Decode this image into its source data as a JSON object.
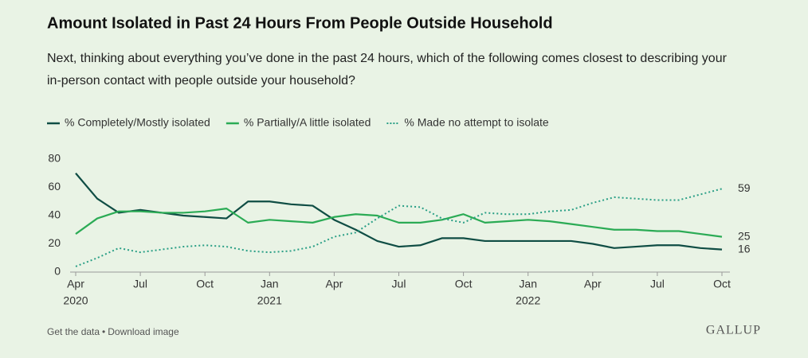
{
  "chart_data": {
    "type": "line",
    "title": "Amount Isolated in Past 24 Hours From People Outside Household",
    "subtitle": "Next, thinking about everything you’ve done in the past 24 hours, which of the following comes closest to describing your in-person contact with people outside your household?",
    "x": [
      "2020-04",
      "2020-05",
      "2020-06",
      "2020-07",
      "2020-08",
      "2020-09",
      "2020-10",
      "2020-11",
      "2020-12",
      "2021-01",
      "2021-02",
      "2021-03",
      "2021-04",
      "2021-05",
      "2021-06",
      "2021-07",
      "2021-08",
      "2021-09",
      "2021-10",
      "2021-11",
      "2021-12",
      "2022-01",
      "2022-02",
      "2022-03",
      "2022-04",
      "2022-05",
      "2022-06",
      "2022-07",
      "2022-08",
      "2022-09",
      "2022-10"
    ],
    "series": [
      {
        "name": "% Completely/Mostly isolated",
        "color": "#0f4d44",
        "style": "solid",
        "values": [
          70,
          52,
          42,
          44,
          42,
          40,
          39,
          38,
          50,
          50,
          48,
          47,
          37,
          30,
          22,
          18,
          19,
          24,
          24,
          22,
          22,
          22,
          22,
          22,
          20,
          17,
          18,
          19,
          19,
          17,
          16
        ]
      },
      {
        "name": "% Partially/A little isolated",
        "color": "#2bab55",
        "style": "solid",
        "values": [
          27,
          38,
          43,
          43,
          42,
          42,
          43,
          45,
          35,
          37,
          36,
          35,
          39,
          41,
          40,
          35,
          35,
          37,
          41,
          35,
          36,
          37,
          36,
          34,
          32,
          30,
          30,
          29,
          29,
          27,
          25
        ]
      },
      {
        "name": "% Made no attempt to isolate",
        "color": "#2a9f86",
        "style": "dotted",
        "values": [
          4,
          10,
          17,
          14,
          16,
          18,
          19,
          18,
          15,
          14,
          15,
          18,
          25,
          28,
          38,
          47,
          46,
          38,
          35,
          42,
          41,
          41,
          43,
          44,
          49,
          53,
          52,
          51,
          51,
          55,
          59
        ]
      }
    ],
    "xlim": [
      "2020-04",
      "2022-10"
    ],
    "xticks": [
      {
        "value": "2020-04",
        "label": "Apr",
        "year": "2020"
      },
      {
        "value": "2020-07",
        "label": "Jul"
      },
      {
        "value": "2020-10",
        "label": "Oct"
      },
      {
        "value": "2021-01",
        "label": "Jan",
        "year": "2021"
      },
      {
        "value": "2021-04",
        "label": "Apr"
      },
      {
        "value": "2021-07",
        "label": "Jul"
      },
      {
        "value": "2021-10",
        "label": "Oct"
      },
      {
        "value": "2022-01",
        "label": "Jan",
        "year": "2022"
      },
      {
        "value": "2022-04",
        "label": "Apr"
      },
      {
        "value": "2022-07",
        "label": "Jul"
      },
      {
        "value": "2022-10",
        "label": "Oct"
      }
    ],
    "ylim": [
      0,
      80
    ],
    "yticks": [
      0,
      20,
      40,
      60,
      80
    ],
    "grid": false,
    "legend": "top-left"
  },
  "footer": {
    "links": [
      "Get the data",
      "Download image"
    ],
    "separator": "•",
    "brand": "GALLUP"
  }
}
